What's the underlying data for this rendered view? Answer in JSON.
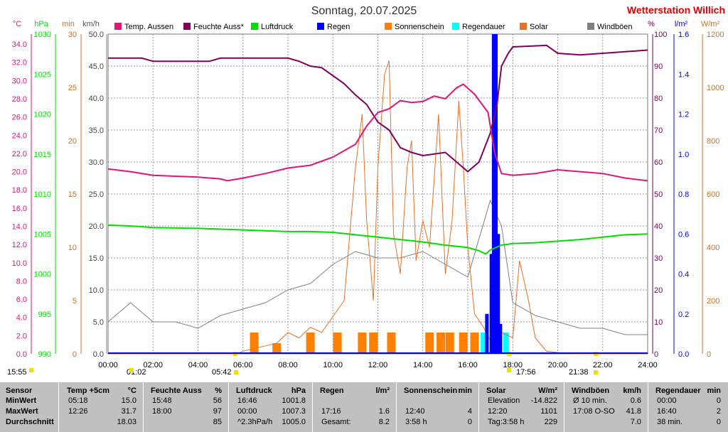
{
  "title": "Sonntag, 20.07.2025",
  "station": "Wetterstation Willich",
  "legend": [
    "Temp. Aussen",
    "Feuchte Auss*",
    "Luftdruck",
    "Regen",
    "Sonnenschein",
    "Regendauer",
    "Solar",
    "Windböen"
  ],
  "colors": {
    "temp": "#e0157a",
    "hum": "#800060",
    "press": "#00e000",
    "rain": "#0000ff",
    "sun": "#ff8000",
    "raindur": "#00ffff",
    "solar": "#e87028",
    "wind": "#808080"
  },
  "left_axes": {
    "temp": {
      "unit": "°C",
      "ticks": [
        "0.0",
        "2.0",
        "4.0",
        "6.0",
        "8.0",
        "10.0",
        "12.0",
        "14.0",
        "16.0",
        "18.0",
        "20.0",
        "22.0",
        "24.0",
        "26.0",
        "28.0",
        "30.0",
        "32.0",
        "34.0"
      ]
    },
    "press": {
      "unit": "hPa",
      "ticks": [
        "990",
        "995",
        "1000",
        "1005",
        "1010",
        "1015",
        "1020",
        "1025",
        "1030"
      ]
    },
    "min": {
      "unit": "min",
      "ticks": [
        "0",
        "5",
        "10",
        "15",
        "20",
        "25",
        "30"
      ]
    },
    "wind": {
      "unit": "km/h",
      "ticks": [
        "0.0",
        "5.0",
        "10.0",
        "15.0",
        "20.0",
        "25.0",
        "30.0",
        "35.0",
        "40.0",
        "45.0",
        "50.0"
      ]
    }
  },
  "right_axes": {
    "hum": {
      "unit": "%",
      "ticks": [
        "0",
        "10",
        "20",
        "30",
        "40",
        "50",
        "60",
        "70",
        "80",
        "90",
        "100"
      ]
    },
    "rain": {
      "unit": "l/m²",
      "ticks": [
        "0.0",
        "0.2",
        "0.4",
        "0.6",
        "0.8",
        "1.0",
        "1.2",
        "1.4",
        "1.6"
      ]
    },
    "solar": {
      "unit": "W/m²",
      "ticks": [
        "0",
        "200",
        "400",
        "600",
        "800",
        "1000",
        "1200"
      ]
    }
  },
  "x_ticks": [
    "00:00",
    "02:00",
    "04:00",
    "06:00",
    "08:00",
    "10:00",
    "12:00",
    "14:00",
    "16:00",
    "18:00",
    "20:00",
    "22:00",
    "24:00"
  ],
  "markers": {
    "moon_rise": "15:55",
    "min_temp_time": "01:02",
    "sunrise": "05:42",
    "max_temp_time": "17:56",
    "sunset": "21:38"
  },
  "chart_data": {
    "type": "line",
    "x_unit": "hours",
    "x_range": [
      0,
      24
    ],
    "series": [
      {
        "name": "Temp. Aussen",
        "axis": "°C",
        "points": [
          [
            0,
            20.3
          ],
          [
            1,
            20.0
          ],
          [
            2,
            19.6
          ],
          [
            3,
            19.5
          ],
          [
            4,
            19.4
          ],
          [
            5,
            19.2
          ],
          [
            5.3,
            19.0
          ],
          [
            6,
            19.3
          ],
          [
            7,
            19.8
          ],
          [
            8,
            20.4
          ],
          [
            9,
            20.7
          ],
          [
            10,
            21.6
          ],
          [
            11,
            23.0
          ],
          [
            11.5,
            25.0
          ],
          [
            12,
            26.5
          ],
          [
            12.5,
            26.9
          ],
          [
            13,
            27.8
          ],
          [
            13.5,
            27.6
          ],
          [
            14,
            27.7
          ],
          [
            14.5,
            28.3
          ],
          [
            15,
            28.0
          ],
          [
            15.5,
            29.2
          ],
          [
            15.8,
            29.6
          ],
          [
            16.3,
            28.5
          ],
          [
            16.9,
            26.5
          ],
          [
            17.2,
            22.0
          ],
          [
            17.5,
            19.8
          ],
          [
            18,
            19.6
          ],
          [
            19,
            19.8
          ],
          [
            20,
            20.2
          ],
          [
            21,
            20.0
          ],
          [
            22,
            19.8
          ],
          [
            23,
            19.3
          ],
          [
            24,
            19.0
          ]
        ]
      },
      {
        "name": "Feuchte Auss*",
        "axis": "%",
        "points": [
          [
            0,
            92.5
          ],
          [
            1.5,
            92.5
          ],
          [
            2,
            91.5
          ],
          [
            4.5,
            91.5
          ],
          [
            5,
            92.5
          ],
          [
            8,
            92.5
          ],
          [
            8.5,
            91.5
          ],
          [
            9,
            90.0
          ],
          [
            9.5,
            89.5
          ],
          [
            10,
            87.0
          ],
          [
            10.5,
            84.5
          ],
          [
            11,
            81.0
          ],
          [
            11.5,
            78.0
          ],
          [
            12,
            72.5
          ],
          [
            12.5,
            70.0
          ],
          [
            13,
            64.5
          ],
          [
            13.5,
            63.0
          ],
          [
            14,
            62.0
          ],
          [
            14.5,
            62.5
          ],
          [
            15,
            63.0
          ],
          [
            15.5,
            60.0
          ],
          [
            16,
            57.0
          ],
          [
            16.5,
            60.0
          ],
          [
            17,
            69.0
          ],
          [
            17.3,
            78.0
          ],
          [
            17.5,
            90.0
          ],
          [
            17.8,
            94.0
          ],
          [
            18,
            96.0
          ],
          [
            19.5,
            96.5
          ],
          [
            20,
            94.0
          ],
          [
            21,
            93.5
          ],
          [
            22,
            94.0
          ],
          [
            23,
            94.5
          ],
          [
            24,
            95.0
          ]
        ]
      },
      {
        "name": "Luftdruck",
        "axis": "hPa",
        "points": [
          [
            0,
            1006.1
          ],
          [
            1,
            1006.0
          ],
          [
            2,
            1005.8
          ],
          [
            4,
            1005.7
          ],
          [
            6,
            1005.5
          ],
          [
            8,
            1005.3
          ],
          [
            9,
            1005.3
          ],
          [
            10,
            1005.2
          ],
          [
            11,
            1004.9
          ],
          [
            12,
            1004.6
          ],
          [
            13,
            1004.3
          ],
          [
            14,
            1004.0
          ],
          [
            15,
            1003.6
          ],
          [
            16,
            1003.3
          ],
          [
            16.5,
            1002.9
          ],
          [
            16.8,
            1002.5
          ],
          [
            17,
            1003.0
          ],
          [
            17.5,
            1003.6
          ],
          [
            18,
            1003.8
          ],
          [
            19,
            1003.9
          ],
          [
            20,
            1004.1
          ],
          [
            21,
            1004.3
          ],
          [
            22,
            1004.6
          ],
          [
            23,
            1004.9
          ],
          [
            24,
            1005.0
          ]
        ]
      },
      {
        "name": "Regen",
        "axis": "l/m²",
        "type": "bar",
        "points": [
          [
            16.85,
            0.2
          ],
          [
            17.05,
            0.5
          ],
          [
            17.15,
            1.6
          ],
          [
            17.25,
            1.6
          ],
          [
            17.35,
            0.6
          ],
          [
            17.45,
            0.15
          ]
        ]
      },
      {
        "name": "Sonnenschein",
        "axis": "min",
        "type": "bar",
        "points": [
          [
            6.5,
            2
          ],
          [
            7.5,
            1
          ],
          [
            9.0,
            2
          ],
          [
            10.2,
            2
          ],
          [
            11.3,
            2
          ],
          [
            11.8,
            2
          ],
          [
            12.6,
            2
          ],
          [
            14.3,
            2
          ],
          [
            14.8,
            2
          ],
          [
            15.2,
            2
          ],
          [
            15.8,
            2
          ],
          [
            16.3,
            2
          ]
        ]
      },
      {
        "name": "Regendauer",
        "axis": "min",
        "type": "bar",
        "points": [
          [
            16.7,
            2
          ],
          [
            17.7,
            2
          ]
        ]
      },
      {
        "name": "Solar",
        "axis": "W/m²",
        "points": [
          [
            0,
            0
          ],
          [
            5.7,
            0
          ],
          [
            6,
            10
          ],
          [
            6.5,
            20
          ],
          [
            7,
            30
          ],
          [
            7.5,
            40
          ],
          [
            8,
            80
          ],
          [
            8.5,
            60
          ],
          [
            9,
            100
          ],
          [
            9.5,
            80
          ],
          [
            10,
            140
          ],
          [
            10.5,
            200
          ],
          [
            11,
            700
          ],
          [
            11.3,
            900
          ],
          [
            11.5,
            500
          ],
          [
            11.8,
            200
          ],
          [
            12,
            700
          ],
          [
            12.3,
            1050
          ],
          [
            12.5,
            1101
          ],
          [
            12.7,
            450
          ],
          [
            13,
            300
          ],
          [
            13.3,
            700
          ],
          [
            13.5,
            800
          ],
          [
            13.7,
            350
          ],
          [
            14,
            500
          ],
          [
            14.3,
            400
          ],
          [
            14.7,
            900
          ],
          [
            15,
            300
          ],
          [
            15.3,
            500
          ],
          [
            15.6,
            950
          ],
          [
            15.8,
            700
          ],
          [
            16,
            400
          ],
          [
            16.3,
            150
          ],
          [
            16.7,
            100
          ],
          [
            17,
            50
          ],
          [
            17.5,
            80
          ],
          [
            18,
            60
          ],
          [
            18.3,
            350
          ],
          [
            18.7,
            200
          ],
          [
            19,
            60
          ],
          [
            19.5,
            10
          ],
          [
            20.5,
            0
          ],
          [
            24,
            0
          ]
        ]
      },
      {
        "name": "Windböen",
        "axis": "km/h",
        "points": [
          [
            0,
            5
          ],
          [
            1,
            8
          ],
          [
            2,
            5
          ],
          [
            3,
            5
          ],
          [
            4,
            4
          ],
          [
            5,
            6
          ],
          [
            6,
            7
          ],
          [
            7,
            8
          ],
          [
            8,
            10
          ],
          [
            9,
            11
          ],
          [
            10,
            14
          ],
          [
            11,
            16
          ],
          [
            12,
            15
          ],
          [
            13,
            15
          ],
          [
            14,
            16
          ],
          [
            15,
            14
          ],
          [
            16,
            12
          ],
          [
            17,
            24
          ],
          [
            17.5,
            20
          ],
          [
            18,
            8
          ],
          [
            19,
            6
          ],
          [
            20,
            5
          ],
          [
            21,
            4
          ],
          [
            22,
            4
          ],
          [
            23,
            3
          ],
          [
            24,
            3
          ]
        ]
      }
    ]
  },
  "table": {
    "row_labels": [
      "Sensor",
      "MinWert",
      "MaxWert",
      "Durchschnitt"
    ],
    "columns": [
      {
        "header": "Temp +5cm",
        "unit": "°C",
        "rows": [
          [
            "05:18",
            "15.0"
          ],
          [
            "12:26",
            "31.7"
          ],
          [
            "",
            "18.03"
          ]
        ]
      },
      {
        "header": "Feuchte Auss",
        "unit": "%",
        "rows": [
          [
            "15:48",
            "56"
          ],
          [
            "18:00",
            "97"
          ],
          [
            "",
            "85"
          ]
        ]
      },
      {
        "header": "Luftdruck",
        "unit": "hPa",
        "rows": [
          [
            "16:46",
            "1001.8"
          ],
          [
            "00:00",
            "1007.3"
          ],
          [
            "^2.3hPa/h",
            "1005.0"
          ]
        ]
      },
      {
        "header": "Regen",
        "unit": "l/m²",
        "rows": [
          [
            "",
            ""
          ],
          [
            "17:16",
            "1.6"
          ],
          [
            "Gesamt:",
            "8.2"
          ]
        ]
      },
      {
        "header": "Sonnenschein",
        "unit": "min",
        "rows": [
          [
            "",
            ""
          ],
          [
            "12:40",
            "4"
          ],
          [
            "3:58 h",
            "0"
          ]
        ]
      },
      {
        "header": "Solar",
        "unit": "W/m²",
        "rows": [
          [
            "Elevation",
            "-14.822"
          ],
          [
            "12:20",
            "1101"
          ],
          [
            "Tag:3:58 h",
            "229"
          ]
        ]
      },
      {
        "header": "Windböen",
        "unit": "km/h",
        "rows": [
          [
            "Ø 10 min.",
            "0.6"
          ],
          [
            "17:08 O-SO",
            "41.8"
          ],
          [
            "",
            "7.0"
          ]
        ]
      },
      {
        "header": "Regendauer",
        "unit": "min",
        "rows": [
          [
            "00:00",
            "0"
          ],
          [
            "16:40",
            "2"
          ],
          [
            "38 min.",
            "0"
          ]
        ]
      }
    ]
  }
}
